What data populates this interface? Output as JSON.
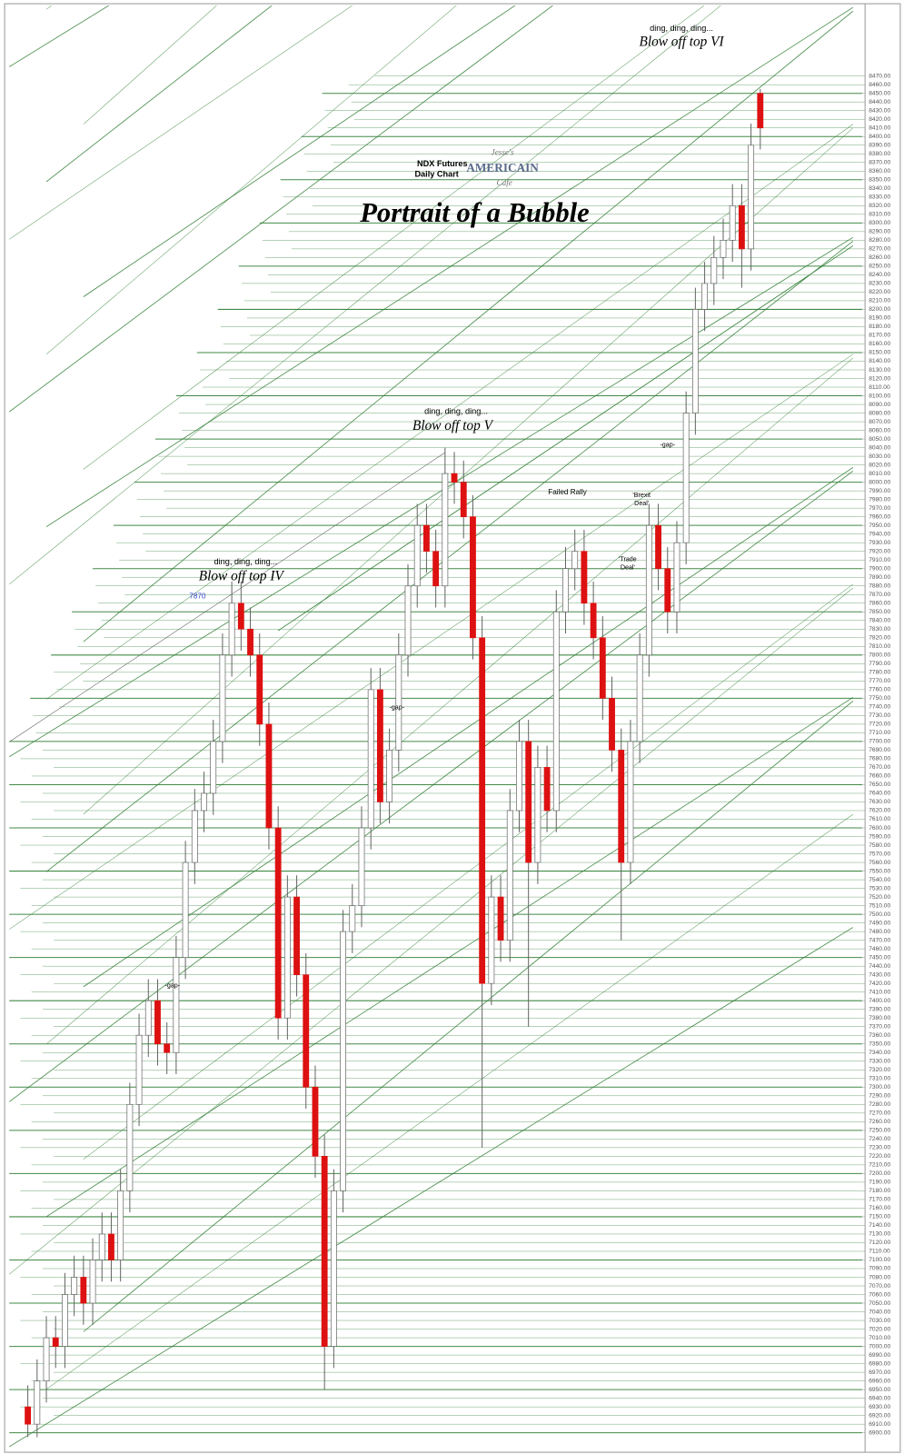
{
  "chart_data": {
    "type": "candlestick",
    "title": "Portrait of a Bubble",
    "subtitle": [
      "NDX  Futures",
      "Daily Chart"
    ],
    "logo": [
      "Jesse's",
      "AMERICAIN",
      "Cafe"
    ],
    "annotations": [
      "ding, ding, ding...",
      "Blow off top IV",
      "ding, ding, ding...",
      "Blow off top V",
      "ding, ding, ding...",
      "Blow off top VI",
      "7870",
      "-gap-",
      "-gap-",
      "-gap-",
      "Failed Rally",
      "'Brexit",
      "Deal'",
      "'Trade",
      "Deal'"
    ],
    "up_color": "#ffffff",
    "down_color": "#dd1111",
    "grid_color": "#2e7d32",
    "grid": true,
    "open": [
      6930,
      6910,
      6960,
      7010,
      7000,
      7060,
      7080,
      7050,
      7100,
      7130,
      7100,
      7180,
      7280,
      7360,
      7400,
      7350,
      7340,
      7450,
      7560,
      7620,
      7640,
      7700,
      7800,
      7860,
      7830,
      7800,
      7720,
      7600,
      7380,
      7520,
      7430,
      7300,
      7220,
      7000,
      7180,
      7480,
      7510,
      7600,
      7760,
      7630,
      7690,
      7800,
      7880,
      7950,
      7920,
      7880,
      8010,
      8000,
      7960,
      7820,
      7420,
      7520,
      7470,
      7620,
      7700,
      7560,
      7670,
      7620,
      7850,
      7900,
      7920,
      7860,
      7820,
      7750,
      7690,
      7560,
      7700,
      7800,
      7950,
      7900,
      7850,
      7930,
      8080,
      8200,
      8230,
      8260,
      8280,
      8320,
      8270,
      8450
    ],
    "high": [
      6955,
      6985,
      7035,
      7035,
      7085,
      7105,
      7105,
      7125,
      7155,
      7155,
      7205,
      7305,
      7385,
      7425,
      7425,
      7375,
      7475,
      7585,
      7645,
      7665,
      7725,
      7825,
      7885,
      7885,
      7855,
      7825,
      7745,
      7625,
      7545,
      7545,
      7455,
      7325,
      7245,
      7205,
      7505,
      7535,
      7625,
      7785,
      7785,
      7715,
      7825,
      7905,
      7975,
      7975,
      7945,
      8040,
      8035,
      8025,
      7985,
      7845,
      7545,
      7545,
      7645,
      7725,
      7725,
      7695,
      7695,
      7875,
      7925,
      7945,
      7945,
      7885,
      7845,
      7775,
      7715,
      7725,
      7825,
      7975,
      7975,
      7925,
      7955,
      8105,
      8225,
      8255,
      8285,
      8305,
      8345,
      8345,
      8415,
      8455
    ],
    "low": [
      6895,
      6895,
      6935,
      6975,
      6975,
      7035,
      7025,
      7025,
      7075,
      7075,
      7075,
      7155,
      7255,
      7335,
      7325,
      7315,
      7315,
      7425,
      7535,
      7595,
      7615,
      7675,
      7775,
      7805,
      7775,
      7695,
      7575,
      7355,
      7355,
      7405,
      7275,
      7195,
      6950,
      6975,
      7155,
      7455,
      7485,
      7575,
      7605,
      7605,
      7665,
      7775,
      7855,
      7895,
      7855,
      7855,
      7975,
      7935,
      7795,
      7230,
      7395,
      7445,
      7445,
      7595,
      7370,
      7535,
      7595,
      7595,
      7825,
      7875,
      7835,
      7795,
      7725,
      7665,
      7470,
      7535,
      7675,
      7775,
      7875,
      7825,
      7825,
      7905,
      8055,
      8175,
      8205,
      8235,
      8255,
      8225,
      8245,
      8385
    ],
    "close": [
      6910,
      6960,
      7010,
      7000,
      7060,
      7080,
      7050,
      7100,
      7130,
      7100,
      7180,
      7280,
      7360,
      7400,
      7350,
      7340,
      7450,
      7560,
      7620,
      7640,
      7700,
      7800,
      7860,
      7830,
      7800,
      7720,
      7600,
      7380,
      7520,
      7430,
      7300,
      7220,
      7000,
      7180,
      7480,
      7510,
      7600,
      7760,
      7630,
      7690,
      7800,
      7880,
      7950,
      7920,
      7880,
      8010,
      8000,
      7960,
      7820,
      7420,
      7520,
      7470,
      7620,
      7700,
      7560,
      7670,
      7620,
      7850,
      7900,
      7920,
      7860,
      7820,
      7750,
      7690,
      7560,
      7700,
      7800,
      7950,
      7900,
      7850,
      7930,
      8080,
      8200,
      8230,
      8260,
      8280,
      8320,
      8270,
      8390,
      8410
    ],
    "ylim": [
      6900,
      8470
    ],
    "yticks": [
      {
        "value": 6900,
        "label": "6900.00"
      },
      {
        "value": 6910,
        "label": "6910.00"
      },
      {
        "value": 6920,
        "label": "6920.00"
      },
      {
        "value": 6930,
        "label": "6930.00"
      },
      {
        "value": 6940,
        "label": "6940.00"
      },
      {
        "value": 6950,
        "label": "6950.00"
      },
      {
        "value": 6960,
        "label": "6960.00"
      },
      {
        "value": 6970,
        "label": "6970.00"
      },
      {
        "value": 6980,
        "label": "6980.00"
      },
      {
        "value": 6990,
        "label": "6990.00"
      },
      {
        "value": 7000,
        "label": "7000.00"
      },
      {
        "value": 7010,
        "label": "7010.00"
      },
      {
        "value": 7020,
        "label": "7020.00"
      },
      {
        "value": 7030,
        "label": "7030.00"
      },
      {
        "value": 7040,
        "label": "7040.00"
      },
      {
        "value": 7050,
        "label": "7050.00"
      },
      {
        "value": 7060,
        "label": "7060.00"
      },
      {
        "value": 7070,
        "label": "7070.00"
      },
      {
        "value": 7080,
        "label": "7080.00"
      },
      {
        "value": 7090,
        "label": "7090.00"
      },
      {
        "value": 7100,
        "label": "7100.00"
      },
      {
        "value": 7110,
        "label": "7110.00"
      },
      {
        "value": 7120,
        "label": "7120.00"
      },
      {
        "value": 7130,
        "label": "7130.00"
      },
      {
        "value": 7140,
        "label": "7140.00"
      },
      {
        "value": 7150,
        "label": "7150.00"
      },
      {
        "value": 7160,
        "label": "7160.00"
      },
      {
        "value": 7170,
        "label": "7170.00"
      },
      {
        "value": 7180,
        "label": "7180.00"
      },
      {
        "value": 7190,
        "label": "7190.00"
      },
      {
        "value": 7200,
        "label": "7200.00"
      },
      {
        "value": 7210,
        "label": "7210.00"
      },
      {
        "value": 7220,
        "label": "7220.00"
      },
      {
        "value": 7230,
        "label": "7230.00"
      },
      {
        "value": 7240,
        "label": "7240.00"
      },
      {
        "value": 7250,
        "label": "7250.00"
      },
      {
        "value": 7260,
        "label": "7260.00"
      },
      {
        "value": 7270,
        "label": "7270.00"
      },
      {
        "value": 7280,
        "label": "7280.00"
      },
      {
        "value": 7290,
        "label": "7290.00"
      },
      {
        "value": 7300,
        "label": "7300.00"
      },
      {
        "value": 7310,
        "label": "7310.00"
      },
      {
        "value": 7320,
        "label": "7320.00"
      },
      {
        "value": 7330,
        "label": "7330.00"
      },
      {
        "value": 7340,
        "label": "7340.00"
      },
      {
        "value": 7350,
        "label": "7350.00"
      },
      {
        "value": 7360,
        "label": "7360.00"
      },
      {
        "value": 7370,
        "label": "7370.00"
      },
      {
        "value": 7380,
        "label": "7380.00"
      },
      {
        "value": 7390,
        "label": "7390.00"
      },
      {
        "value": 7400,
        "label": "7400.00"
      },
      {
        "value": 7410,
        "label": "7410.00"
      },
      {
        "value": 7420,
        "label": "7420.00"
      },
      {
        "value": 7430,
        "label": "7430.00"
      },
      {
        "value": 7440,
        "label": "7440.00"
      },
      {
        "value": 7450,
        "label": "7450.00"
      },
      {
        "value": 7460,
        "label": "7460.00"
      },
      {
        "value": 7470,
        "label": "7470.00"
      },
      {
        "value": 7480,
        "label": "7480.00"
      },
      {
        "value": 7490,
        "label": "7490.00"
      },
      {
        "value": 7500,
        "label": "7500.00"
      },
      {
        "value": 7510,
        "label": "7510.00"
      },
      {
        "value": 7520,
        "label": "7520.00"
      },
      {
        "value": 7530,
        "label": "7530.00"
      },
      {
        "value": 7540,
        "label": "7540.00"
      },
      {
        "value": 7550,
        "label": "7550.00"
      },
      {
        "value": 7560,
        "label": "7560.00"
      },
      {
        "value": 7570,
        "label": "7570.00"
      },
      {
        "value": 7580,
        "label": "7580.00"
      },
      {
        "value": 7590,
        "label": "7590.00"
      },
      {
        "value": 7600,
        "label": "7600.00"
      },
      {
        "value": 7610,
        "label": "7610.00"
      },
      {
        "value": 7620,
        "label": "7620.00"
      },
      {
        "value": 7630,
        "label": "7630.00"
      },
      {
        "value": 7640,
        "label": "7640.00"
      },
      {
        "value": 7650,
        "label": "7650.00"
      },
      {
        "value": 7660,
        "label": "7660.00"
      },
      {
        "value": 7670,
        "label": "7670.00"
      },
      {
        "value": 7680,
        "label": "7680.00"
      },
      {
        "value": 7690,
        "label": "7690.00"
      },
      {
        "value": 7700,
        "label": "7700.00"
      },
      {
        "value": 7710,
        "label": "7710.00"
      },
      {
        "value": 7720,
        "label": "7720.00"
      },
      {
        "value": 7730,
        "label": "7730.00"
      },
      {
        "value": 7740,
        "label": "7740.00"
      },
      {
        "value": 7750,
        "label": "7750.00"
      },
      {
        "value": 7760,
        "label": "7760.00"
      },
      {
        "value": 7770,
        "label": "7770.00"
      },
      {
        "value": 7780,
        "label": "7780.00"
      },
      {
        "value": 7790,
        "label": "7790.00"
      },
      {
        "value": 7800,
        "label": "7800.00"
      },
      {
        "value": 7810,
        "label": "7810.00"
      },
      {
        "value": 7820,
        "label": "7820.00"
      },
      {
        "value": 7830,
        "label": "7830.00"
      },
      {
        "value": 7840,
        "label": "7840.00"
      },
      {
        "value": 7850,
        "label": "7850.00"
      },
      {
        "value": 7860,
        "label": "7860.00"
      },
      {
        "value": 7870,
        "label": "7870.00"
      },
      {
        "value": 7880,
        "label": "7880.00"
      },
      {
        "value": 7890,
        "label": "7890.00"
      },
      {
        "value": 7900,
        "label": "7900.00"
      },
      {
        "value": 7910,
        "label": "7910.00"
      },
      {
        "value": 7920,
        "label": "7920.00"
      },
      {
        "value": 7930,
        "label": "7930.00"
      },
      {
        "value": 7940,
        "label": "7940.00"
      },
      {
        "value": 7950,
        "label": "7950.00"
      },
      {
        "value": 7960,
        "label": "7960.00"
      },
      {
        "value": 7970,
        "label": "7970.00"
      },
      {
        "value": 7980,
        "label": "7980.00"
      },
      {
        "value": 7990,
        "label": "7990.00"
      },
      {
        "value": 8000,
        "label": "8000.00"
      },
      {
        "value": 8010,
        "label": "8010.00"
      },
      {
        "value": 8020,
        "label": "8020.00"
      },
      {
        "value": 8030,
        "label": "8030.00"
      },
      {
        "value": 8040,
        "label": "8040.00"
      },
      {
        "value": 8050,
        "label": "8050.00"
      },
      {
        "value": 8060,
        "label": "8060.00"
      },
      {
        "value": 8070,
        "label": "8070.00"
      },
      {
        "value": 8080,
        "label": "8080.00"
      },
      {
        "value": 8090,
        "label": "8090.00"
      },
      {
        "value": 8100,
        "label": "8100.00"
      },
      {
        "value": 8110,
        "label": "8110.00"
      },
      {
        "value": 8120,
        "label": "8120.00"
      },
      {
        "value": 8130,
        "label": "8130.00"
      },
      {
        "value": 8140,
        "label": "8140.00"
      },
      {
        "value": 8150,
        "label": "8150.00"
      },
      {
        "value": 8160,
        "label": "8160.00"
      },
      {
        "value": 8170,
        "label": "8170.00"
      },
      {
        "value": 8180,
        "label": "8180.00"
      },
      {
        "value": 8190,
        "label": "8190.00"
      },
      {
        "value": 8200,
        "label": "8200.00"
      },
      {
        "value": 8210,
        "label": "8210.00"
      },
      {
        "value": 8220,
        "label": "8220.00"
      },
      {
        "value": 8230,
        "label": "8230.00"
      },
      {
        "value": 8240,
        "label": "8240.00"
      },
      {
        "value": 8250,
        "label": "8250.00"
      },
      {
        "value": 8260,
        "label": "8260.00"
      },
      {
        "value": 8270,
        "label": "8270.00"
      },
      {
        "value": 8280,
        "label": "8280.00"
      },
      {
        "value": 8290,
        "label": "8290.00"
      },
      {
        "value": 8300,
        "label": "8300.00"
      },
      {
        "value": 8310,
        "label": "8310.00"
      },
      {
        "value": 8320,
        "label": "8320.00"
      },
      {
        "value": 8330,
        "label": "8330.00"
      },
      {
        "value": 8340,
        "label": "8340.00"
      },
      {
        "value": 8350,
        "label": "8350.00"
      },
      {
        "value": 8360,
        "label": "8360.00"
      },
      {
        "value": 8370,
        "label": "8370.00"
      },
      {
        "value": 8380,
        "label": "8380.00"
      },
      {
        "value": 8390,
        "label": "8390.00"
      },
      {
        "value": 8400,
        "label": "8400.00"
      },
      {
        "value": 8410,
        "label": "8410.00"
      },
      {
        "value": 8420,
        "label": "8420.00"
      },
      {
        "value": 8430,
        "label": "8430.00"
      },
      {
        "value": 8440,
        "label": "8440.00"
      },
      {
        "value": 8450,
        "label": "8450.00"
      },
      {
        "value": 8460,
        "label": "8460.00"
      },
      {
        "value": 8470,
        "label": "8470.00"
      }
    ]
  }
}
